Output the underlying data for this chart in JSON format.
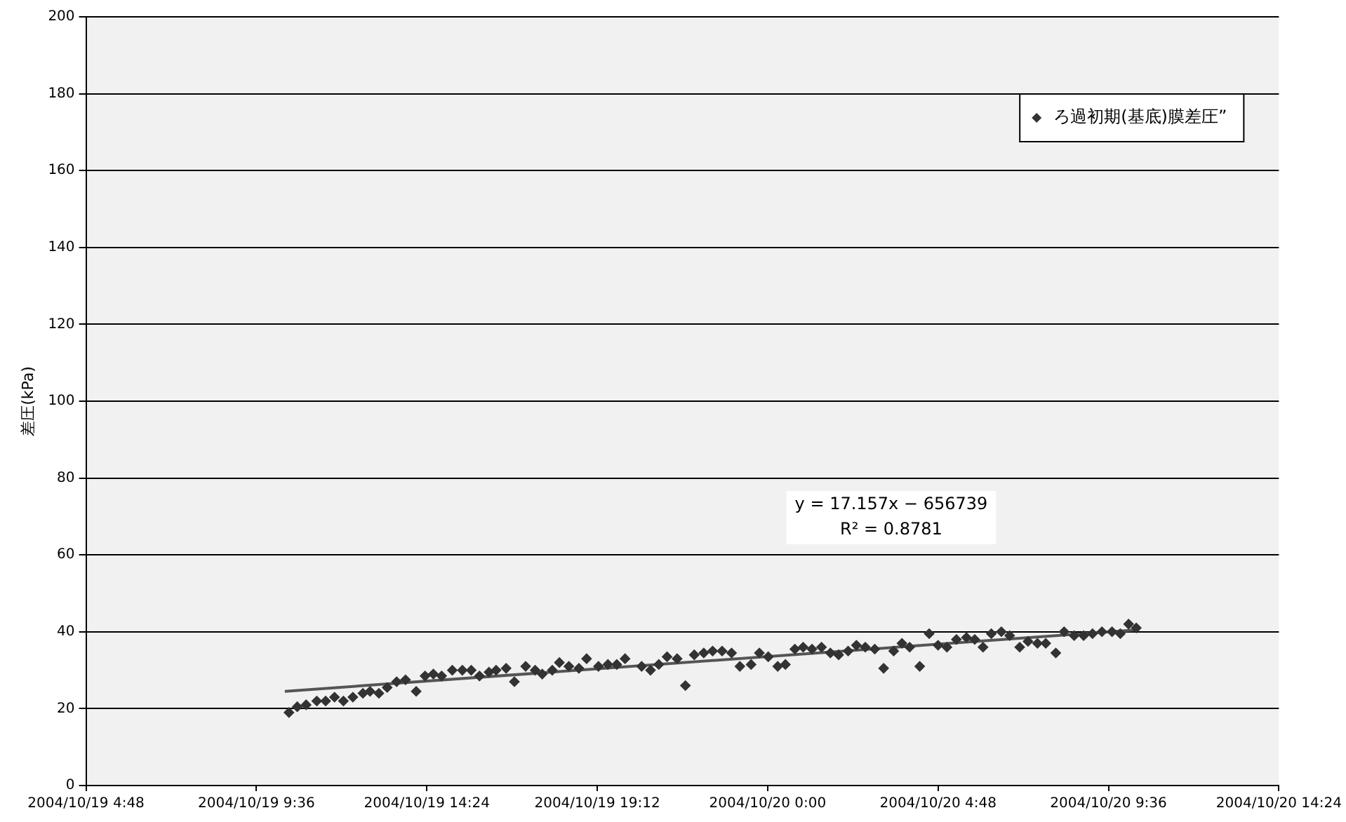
{
  "chart_data": {
    "type": "scatter",
    "ylabel": "差圧(kPa)",
    "legend": "top right",
    "grid": "y",
    "marker": "diamond",
    "xlim": [
      "2004-10-19T04:48",
      "2004-10-20T14:24"
    ],
    "xticks": [
      {
        "value": "2004-10-19T04:48",
        "label": "2004/10/19 4:48"
      },
      {
        "value": "2004-10-19T09:36",
        "label": "2004/10/19 9:36"
      },
      {
        "value": "2004-10-19T14:24",
        "label": "2004/10/19 14:24"
      },
      {
        "value": "2004-10-19T19:12",
        "label": "2004/10/19 19:12"
      },
      {
        "value": "2004-10-20T00:00",
        "label": "2004/10/20 0:00"
      },
      {
        "value": "2004-10-20T04:48",
        "label": "2004/10/20 4:48"
      },
      {
        "value": "2004-10-20T09:36",
        "label": "2004/10/20 9:36"
      },
      {
        "value": "2004-10-20T14:24",
        "label": "2004/10/20 14:24"
      }
    ],
    "ylim": [
      0,
      200
    ],
    "yticks": [
      0,
      20,
      40,
      60,
      80,
      100,
      120,
      140,
      160,
      180,
      200
    ],
    "annotations": [
      "y = 17.157x − 656739",
      "R² = 0.8781"
    ],
    "series": [
      {
        "name": "ろ過初期(基底)膜差圧”",
        "color": "#333333",
        "x": [
          "2004-10-19T10:31",
          "2004-10-19T10:45",
          "2004-10-19T11:00",
          "2004-10-19T11:18",
          "2004-10-19T11:33",
          "2004-10-19T11:48",
          "2004-10-19T12:03",
          "2004-10-19T12:19",
          "2004-10-19T12:36",
          "2004-10-19T12:48",
          "2004-10-19T13:03",
          "2004-10-19T13:17",
          "2004-10-19T13:33",
          "2004-10-19T13:48",
          "2004-10-19T14:06",
          "2004-10-19T14:21",
          "2004-10-19T14:35",
          "2004-10-19T14:49",
          "2004-10-19T15:07",
          "2004-10-19T15:24",
          "2004-10-19T15:39",
          "2004-10-19T15:53",
          "2004-10-19T16:09",
          "2004-10-19T16:21",
          "2004-10-19T16:38",
          "2004-10-19T16:52",
          "2004-10-19T17:11",
          "2004-10-19T17:27",
          "2004-10-19T17:39",
          "2004-10-19T17:56",
          "2004-10-19T18:08",
          "2004-10-19T18:24",
          "2004-10-19T18:41",
          "2004-10-19T18:54",
          "2004-10-19T19:14",
          "2004-10-19T19:30",
          "2004-10-19T19:45",
          "2004-10-19T19:59",
          "2004-10-19T20:27",
          "2004-10-19T20:42",
          "2004-10-19T20:56",
          "2004-10-19T21:10",
          "2004-10-19T21:27",
          "2004-10-19T21:41",
          "2004-10-19T21:56",
          "2004-10-19T22:12",
          "2004-10-19T22:27",
          "2004-10-19T22:43",
          "2004-10-19T22:59",
          "2004-10-19T23:13",
          "2004-10-19T23:32",
          "2004-10-19T23:46",
          "2004-10-20T00:01",
          "2004-10-20T00:17",
          "2004-10-20T00:30",
          "2004-10-20T00:46",
          "2004-10-20T01:00",
          "2004-10-20T01:15",
          "2004-10-20T01:31",
          "2004-10-20T01:46",
          "2004-10-20T02:00",
          "2004-10-20T02:16",
          "2004-10-20T02:30",
          "2004-10-20T02:45",
          "2004-10-20T03:01",
          "2004-10-20T03:16",
          "2004-10-20T03:33",
          "2004-10-20T03:47",
          "2004-10-20T04:00",
          "2004-10-20T04:17",
          "2004-10-20T04:33",
          "2004-10-20T04:48",
          "2004-10-20T05:03",
          "2004-10-20T05:19",
          "2004-10-20T05:36",
          "2004-10-20T05:50",
          "2004-10-20T06:04",
          "2004-10-20T06:18",
          "2004-10-20T06:35",
          "2004-10-20T06:49",
          "2004-10-20T07:06",
          "2004-10-20T07:20",
          "2004-10-20T07:36",
          "2004-10-20T07:50",
          "2004-10-20T08:07",
          "2004-10-20T08:21",
          "2004-10-20T08:38",
          "2004-10-20T08:54",
          "2004-10-20T09:09",
          "2004-10-20T09:25",
          "2004-10-20T09:42",
          "2004-10-20T09:56",
          "2004-10-20T10:10",
          "2004-10-20T10:23"
        ],
        "values": [
          19,
          20.5,
          21,
          22,
          22,
          23,
          22,
          23,
          24,
          24.5,
          24,
          25.5,
          27,
          27.5,
          24.5,
          28.5,
          29,
          28.5,
          30,
          30,
          30,
          28.5,
          29.5,
          30,
          30.5,
          27,
          31,
          30,
          29,
          30,
          32,
          31,
          30.5,
          33,
          31,
          31.5,
          31.5,
          33,
          31,
          30,
          31.5,
          33.5,
          33,
          26,
          34,
          34.5,
          35,
          35,
          34.5,
          31,
          31.5,
          34.5,
          33.5,
          31,
          31.5,
          35.5,
          36,
          35.5,
          36,
          34.5,
          34,
          35,
          36.5,
          36,
          35.5,
          30.5,
          35,
          37,
          36,
          31,
          39.5,
          36.5,
          36,
          38,
          38.5,
          38,
          36,
          39.5,
          40,
          39,
          36,
          37.5,
          37,
          37,
          34.5,
          40,
          39,
          39,
          39.5,
          40,
          40,
          39.5,
          42,
          41
        ]
      },
      {
        "color": "#555555",
        "type": "line",
        "marker": "none",
        "x": [
          "2004-10-19T10:24",
          "2004-10-20T10:24"
        ],
        "values": [
          24.5,
          40.5
        ]
      }
    ]
  }
}
